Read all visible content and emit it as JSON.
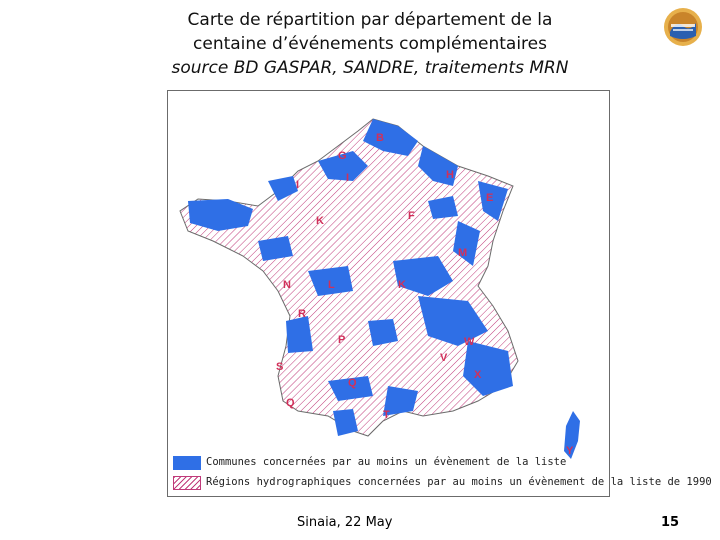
{
  "slide": {
    "title_line1": "Carte de répartition par département de la",
    "title_line2": "centaine d’événements complémentaires",
    "title_line3": "source BD GASPAR, SANDRE, traitements MRN",
    "logo_icon": "mrn-logo-icon",
    "footer_left": "Sinaia, 22 May",
    "page_number": "15"
  },
  "map": {
    "blue_color": "#2f6fe6",
    "hatch_color": "#c03a7a",
    "region_labels": [
      "B",
      "G",
      "H",
      "I",
      "I",
      "E",
      "F",
      "K",
      "M",
      "L",
      "N",
      "K",
      "R",
      "P",
      "W",
      "V",
      "S",
      "X",
      "Q",
      "Q",
      "T",
      "Y"
    ],
    "legend": {
      "blue_label": "Communes concernées par au moins un évènement de la liste",
      "hatch_label": "Régions hydrographiques concernées par au moins un évènement de la liste de 1990"
    }
  }
}
